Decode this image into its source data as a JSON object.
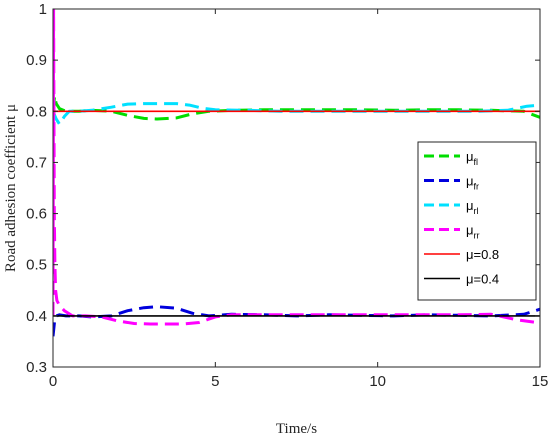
{
  "chart_data": {
    "type": "line",
    "xlabel": "Time/s",
    "ylabel": "Road adhesion coefficient  μ",
    "xlim": [
      0,
      15
    ],
    "ylim": [
      0.3,
      1
    ],
    "xticks": [
      0,
      5,
      10,
      15
    ],
    "yticks": [
      0.3,
      0.4,
      0.5,
      0.6,
      0.7,
      0.8,
      0.9,
      1
    ],
    "grid": false,
    "legend_position": "right",
    "series": [
      {
        "name": "μfl",
        "base": "μ",
        "sub": "fl",
        "color": "#00dd00",
        "dash": true,
        "x": [
          0,
          0.05,
          0.1,
          0.2,
          0.4,
          0.8,
          1.2,
          1.8,
          2.3,
          2.8,
          3.2,
          3.8,
          4.3,
          4.8,
          5.5,
          6.5,
          7.5,
          8.5,
          9.5,
          10.5,
          11.5,
          12.5,
          13.5,
          14.5,
          15
        ],
        "values": [
          0.8,
          0.83,
          0.815,
          0.805,
          0.8,
          0.8,
          0.802,
          0.8,
          0.792,
          0.786,
          0.785,
          0.787,
          0.795,
          0.8,
          0.802,
          0.803,
          0.803,
          0.803,
          0.803,
          0.802,
          0.803,
          0.803,
          0.802,
          0.8,
          0.788
        ]
      },
      {
        "name": "μfr",
        "base": "μ",
        "sub": "fr",
        "color": "#0000dd",
        "dash": true,
        "x": [
          0,
          0.05,
          0.1,
          0.2,
          0.4,
          0.8,
          1.2,
          1.8,
          2.3,
          2.8,
          3.2,
          3.8,
          4.3,
          4.8,
          5.5,
          6.5,
          7.5,
          8.5,
          9.5,
          10.5,
          11.5,
          12.5,
          13.5,
          14.5,
          15
        ],
        "values": [
          0.36,
          0.39,
          0.4,
          0.402,
          0.4,
          0.4,
          0.398,
          0.4,
          0.41,
          0.416,
          0.418,
          0.415,
          0.405,
          0.4,
          0.403,
          0.402,
          0.4,
          0.402,
          0.401,
          0.4,
          0.402,
          0.401,
          0.4,
          0.403,
          0.413
        ]
      },
      {
        "name": "μrl",
        "base": "μ",
        "sub": "rl",
        "color": "#00e0ff",
        "dash": true,
        "x": [
          0,
          0.1,
          0.2,
          0.35,
          0.5,
          0.8,
          1.2,
          1.8,
          2.3,
          2.8,
          3.3,
          3.8,
          4.2,
          4.6,
          5,
          6,
          7,
          8,
          9,
          10,
          11,
          12,
          13,
          14,
          14.6,
          15
        ],
        "values": [
          0.8,
          0.785,
          0.775,
          0.79,
          0.8,
          0.8,
          0.802,
          0.808,
          0.814,
          0.815,
          0.815,
          0.815,
          0.812,
          0.806,
          0.803,
          0.802,
          0.8,
          0.8,
          0.8,
          0.8,
          0.8,
          0.8,
          0.8,
          0.802,
          0.81,
          0.812
        ]
      },
      {
        "name": "μrr",
        "base": "μ",
        "sub": "rr",
        "color": "#ff00ff",
        "dash": true,
        "x": [
          0,
          0.02,
          0.04,
          0.06,
          0.08,
          0.12,
          0.2,
          0.35,
          0.6,
          1,
          1.5,
          2,
          2.5,
          3,
          3.5,
          4,
          4.5,
          5,
          5.5,
          6.5,
          7.5,
          8.5,
          9.5,
          10.5,
          11.5,
          12.5,
          13.5,
          14.3,
          15
        ],
        "values": [
          0.4,
          1,
          0.6,
          0.5,
          0.45,
          0.43,
          0.42,
          0.41,
          0.4,
          0.4,
          0.398,
          0.39,
          0.385,
          0.384,
          0.384,
          0.384,
          0.387,
          0.398,
          0.402,
          0.402,
          0.402,
          0.402,
          0.402,
          0.402,
          0.402,
          0.402,
          0.403,
          0.392,
          0.386
        ]
      },
      {
        "name": "μ=0.8",
        "color": "#ff0000",
        "dash": false,
        "x": [
          0,
          15
        ],
        "values": [
          0.8,
          0.8
        ]
      },
      {
        "name": "μ=0.4",
        "color": "#000000",
        "dash": false,
        "x": [
          0,
          15
        ],
        "values": [
          0.4,
          0.4
        ]
      }
    ]
  }
}
